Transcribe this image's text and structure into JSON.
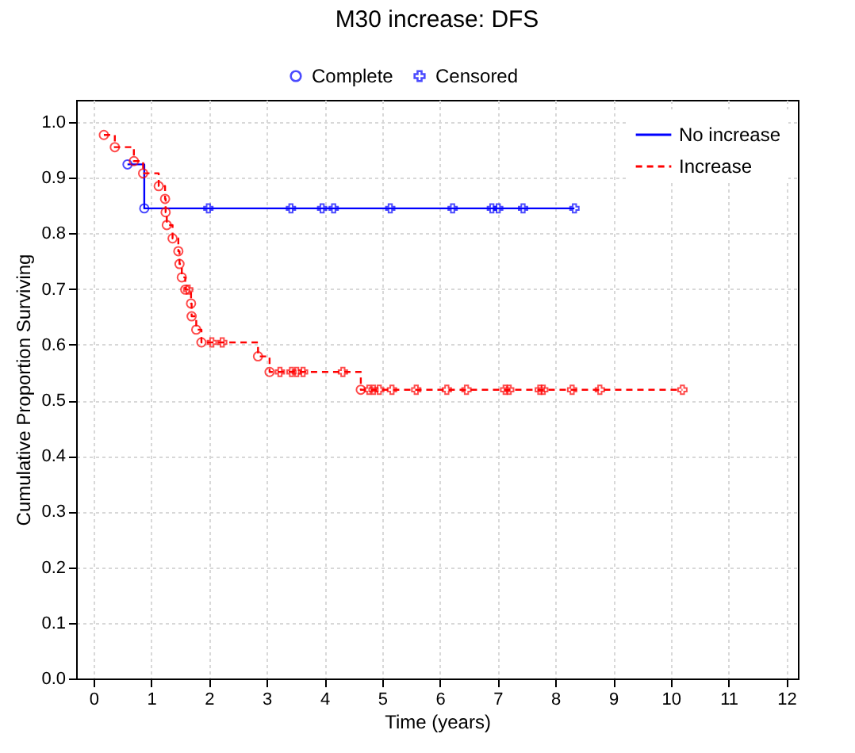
{
  "chart_data": {
    "type": "step",
    "title": "M30 increase: DFS",
    "xlabel": "Time (years)",
    "ylabel": "Cumulative Proportion Surviving",
    "xlim": [
      -0.3,
      12.2
    ],
    "xticks": [
      0,
      1,
      2,
      3,
      4,
      5,
      6,
      7,
      8,
      9,
      10,
      11,
      12
    ],
    "ylim": [
      0,
      1.04
    ],
    "yticks": [
      {
        "value": 0,
        "label": "0.0"
      },
      {
        "value": 0.1,
        "label": "0.1"
      },
      {
        "value": 0.2,
        "label": "0.2"
      },
      {
        "value": 0.3,
        "label": "0.3"
      },
      {
        "value": 0.4,
        "label": "0.4"
      },
      {
        "value": 0.5,
        "label": "0.5"
      },
      {
        "value": 0.6,
        "label": "0.6"
      },
      {
        "value": 0.7,
        "label": "0.7"
      },
      {
        "value": 0.8,
        "label": "0.8"
      },
      {
        "value": 0.9,
        "label": "0.9"
      },
      {
        "value": 1.0,
        "label": "1.0"
      }
    ],
    "grid": true,
    "legend": "top right",
    "series": [
      {
        "name": "No increase",
        "color": "#0000ff",
        "line_style": "solid",
        "marker": "none",
        "x": [
          0.59,
          0.88,
          8.33
        ],
        "values": [
          0.924,
          0.845,
          0.845
        ]
      },
      {
        "name": "Increase",
        "color": "#ff0000",
        "line_style": "dashed",
        "marker": "none",
        "x": [
          0.18,
          0.37,
          0.7,
          0.86,
          1.13,
          1.24,
          1.25,
          1.27,
          1.37,
          1.47,
          1.49,
          1.53,
          1.59,
          1.69,
          1.7,
          1.78,
          1.87,
          2.85,
          3.05,
          4.63,
          10.2
        ],
        "values": [
          0.977,
          0.955,
          0.93,
          0.908,
          0.885,
          0.862,
          0.838,
          0.815,
          0.791,
          0.768,
          0.745,
          0.721,
          0.699,
          0.674,
          0.651,
          0.627,
          0.604,
          0.579,
          0.551,
          0.519,
          0.519
        ]
      },
      {
        "name": "Complete",
        "type": "scatter",
        "color": "#0000ff",
        "marker": "circle",
        "x": [
          0.59,
          0.88
        ],
        "values": [
          0.924,
          0.845
        ]
      },
      {
        "name": "Censored",
        "type": "scatter",
        "color": "#0000ff",
        "marker": "cross",
        "x": [
          1.99,
          3.42,
          3.96,
          4.16,
          5.14,
          6.22,
          6.9,
          7.01,
          7.44,
          8.33
        ],
        "values": [
          0.845,
          0.845,
          0.845,
          0.845,
          0.845,
          0.845,
          0.845,
          0.845,
          0.845,
          0.845
        ]
      },
      {
        "type": "scatter",
        "color": "#ff0000",
        "marker": "circle",
        "x": [
          0.18,
          0.37,
          0.7,
          0.86,
          1.13,
          1.24,
          1.25,
          1.27,
          1.37,
          1.47,
          1.49,
          1.53,
          1.59,
          1.69,
          1.7,
          1.78,
          1.87,
          2.85,
          3.05,
          4.63
        ],
        "values": [
          0.977,
          0.955,
          0.93,
          0.908,
          0.885,
          0.862,
          0.838,
          0.815,
          0.791,
          0.768,
          0.745,
          0.721,
          0.699,
          0.674,
          0.651,
          0.627,
          0.604,
          0.579,
          0.551,
          0.519
        ]
      },
      {
        "type": "scatter",
        "color": "#ff0000",
        "marker": "cross",
        "x": [
          1.64,
          2.05,
          2.23,
          3.23,
          3.43,
          3.52,
          3.63,
          4.32,
          4.77,
          4.85,
          4.95,
          5.17,
          5.59,
          6.12,
          6.46,
          7.13,
          7.2,
          7.73,
          7.79,
          8.29,
          8.77,
          10.2
        ],
        "values": [
          0.699,
          0.604,
          0.604,
          0.551,
          0.551,
          0.551,
          0.551,
          0.551,
          0.519,
          0.519,
          0.519,
          0.519,
          0.519,
          0.519,
          0.519,
          0.519,
          0.519,
          0.519,
          0.519,
          0.519,
          0.519,
          0.519
        ]
      }
    ]
  }
}
